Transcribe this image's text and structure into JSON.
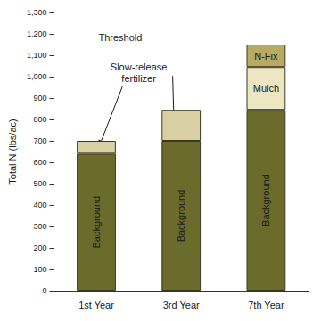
{
  "chart_data": {
    "type": "bar",
    "stacked": true,
    "categories": [
      "1st Year",
      "3rd Year",
      "7th Year"
    ],
    "series": [
      {
        "name": "Background",
        "color": "#6b6b2b",
        "values": [
          640,
          700,
          845
        ]
      },
      {
        "name": "Slow-release fertilizer",
        "color": "#d9d0a3",
        "values": [
          60,
          145,
          null
        ]
      },
      {
        "name": "Mulch",
        "color": "#ede6c2",
        "values": [
          null,
          null,
          200
        ]
      },
      {
        "name": "N-Fix",
        "color": "#b9aa63",
        "values": [
          null,
          null,
          105
        ]
      }
    ],
    "ylabel": "Total N (lbs/ac)",
    "ylim": [
      0,
      1300
    ],
    "yticks": [
      0,
      100,
      200,
      300,
      400,
      500,
      600,
      700,
      800,
      900,
      {
        "value": 1000,
        "label": "1,000"
      },
      {
        "value": 1100,
        "label": "1,100"
      },
      {
        "value": 1200,
        "label": "1,200"
      },
      {
        "value": 1300,
        "label": "1,300"
      }
    ],
    "threshold": {
      "label": "Threshold",
      "value": 1150
    },
    "annotations": [
      {
        "text": "Slow-release fertilizer",
        "series": "Slow-release fertilizer"
      }
    ],
    "grid": false
  }
}
